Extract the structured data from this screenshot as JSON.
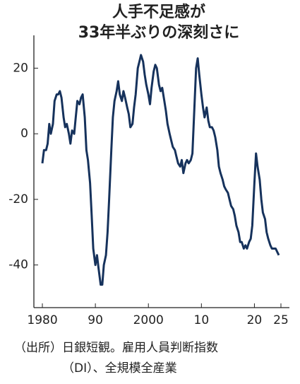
{
  "chart_data": {
    "type": "line",
    "title": [
      "人手不足感が",
      "33年半ぶりの深刻さに"
    ],
    "source": [
      "（出所）日銀短観。雇用人員判断指数",
      "（DI）、全規模全産業"
    ],
    "color": "#16325c",
    "xlim": [
      1978.4,
      2026.6
    ],
    "xticks": [
      1980,
      {
        "value": 1990,
        "label": "90"
      },
      2000,
      {
        "value": 2010,
        "label": "10"
      },
      {
        "value": 2020,
        "label": "20"
      },
      {
        "value": 2025,
        "label": "25"
      }
    ],
    "ylim": [
      -53,
      30
    ],
    "yticks": [
      20,
      0,
      -20,
      -40
    ],
    "x": [
      1980.0,
      1980.3,
      1980.7,
      1981.0,
      1981.3,
      1981.6,
      1982.0,
      1982.3,
      1982.7,
      1983.0,
      1983.3,
      1983.6,
      1984.0,
      1984.3,
      1984.6,
      1985.0,
      1985.3,
      1985.6,
      1986.0,
      1986.3,
      1986.6,
      1987.0,
      1987.3,
      1987.6,
      1988.0,
      1988.3,
      1988.6,
      1989.0,
      1989.3,
      1989.6,
      1990.0,
      1990.3,
      1990.6,
      1991.0,
      1991.3,
      1991.6,
      1992.0,
      1992.3,
      1992.6,
      1993.0,
      1993.3,
      1993.6,
      1994.0,
      1994.3,
      1994.6,
      1995.0,
      1995.3,
      1995.6,
      1996.0,
      1996.3,
      1996.6,
      1997.0,
      1997.3,
      1997.6,
      1998.0,
      1998.3,
      1998.6,
      1999.0,
      1999.3,
      1999.6,
      2000.0,
      2000.3,
      2000.6,
      2001.0,
      2001.3,
      2001.6,
      2002.0,
      2002.3,
      2002.6,
      2003.0,
      2003.3,
      2003.6,
      2004.0,
      2004.3,
      2004.6,
      2005.0,
      2005.3,
      2005.6,
      2006.0,
      2006.3,
      2006.6,
      2007.0,
      2007.3,
      2007.6,
      2008.0,
      2008.3,
      2008.6,
      2009.0,
      2009.3,
      2009.6,
      2010.0,
      2010.3,
      2010.6,
      2011.0,
      2011.3,
      2011.6,
      2012.0,
      2012.3,
      2012.6,
      2013.0,
      2013.3,
      2013.6,
      2014.0,
      2014.3,
      2014.6,
      2015.0,
      2015.3,
      2015.6,
      2016.0,
      2016.3,
      2016.6,
      2017.0,
      2017.3,
      2017.6,
      2018.0,
      2018.3,
      2018.6,
      2019.0,
      2019.3,
      2019.6,
      2020.0,
      2020.3,
      2020.6,
      2021.0,
      2021.3,
      2021.6,
      2022.0,
      2022.3,
      2022.6,
      2023.0,
      2023.3,
      2023.6,
      2024.0,
      2024.3,
      2024.6
    ],
    "values": [
      -9,
      -5,
      -5,
      -3,
      3,
      0,
      3,
      10,
      12,
      12,
      13,
      11,
      5,
      2,
      3,
      0,
      -3,
      1,
      0,
      5,
      10,
      9,
      11,
      12,
      5,
      -5,
      -8,
      -15,
      -25,
      -35,
      -40,
      -37,
      -41,
      -46,
      -46,
      -40,
      -37,
      -30,
      -20,
      -5,
      5,
      10,
      13,
      16,
      12,
      10,
      13,
      11,
      8,
      6,
      2,
      3,
      8,
      12,
      20,
      22,
      24,
      22,
      18,
      15,
      12,
      9,
      14,
      19,
      21,
      20,
      15,
      13,
      14,
      10,
      7,
      3,
      0,
      -2,
      -4,
      -5,
      -7,
      -9,
      -10,
      -8,
      -12,
      -9,
      -8,
      -9,
      -8,
      -6,
      5,
      20,
      23,
      18,
      12,
      8,
      5,
      8,
      4,
      2,
      2,
      1,
      -1,
      -5,
      -10,
      -12,
      -14,
      -16,
      -17,
      -18,
      -20,
      -22,
      -23,
      -25,
      -28,
      -30,
      -33,
      -33,
      -35,
      -34,
      -35,
      -33,
      -32,
      -28,
      -15,
      -6,
      -10,
      -14,
      -20,
      -24,
      -26,
      -30,
      -32,
      -34,
      -35,
      -35,
      -35,
      -36,
      -37
    ]
  }
}
